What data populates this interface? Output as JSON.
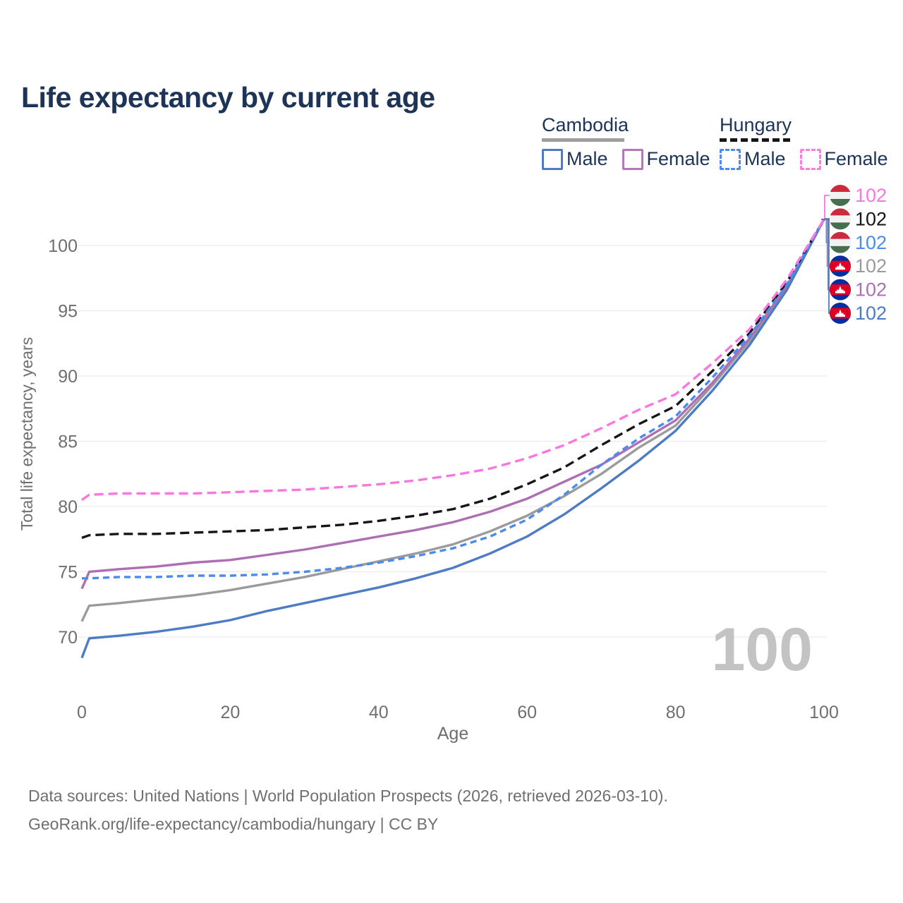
{
  "header": {
    "title": "Life expectancy by current age"
  },
  "legend": {
    "cambodia": {
      "label": "Cambodia",
      "male": "Male",
      "female": "Female",
      "line_style": "solid",
      "swatch_color": "#9e9e9e"
    },
    "hungary": {
      "label": "Hungary",
      "male": "Male",
      "female": "Female",
      "line_style": "dashed",
      "swatch_color": "#161616"
    }
  },
  "footer": {
    "line1": "Data sources: United Nations | World Population Prospects (2026, retrieved 2026-03-10).",
    "line2": "GeoRank.org/life-expectancy/cambodia/hungary | CC BY"
  },
  "colors": {
    "title_text": "#1d3456",
    "tick_text": "#6f6f6f",
    "gridline": "#ececec",
    "watermark": "#c3c3c3",
    "hungary_flag": {
      "red": "#cd2a3e",
      "white": "#f2f2f2",
      "green": "#456f4e"
    },
    "cambodia_flag": {
      "blue": "#032ea1",
      "red": "#df0024",
      "temple": "#ffffff"
    }
  },
  "chart_data": {
    "type": "line",
    "title": "Life expectancy by current age",
    "xlabel": "Age",
    "ylabel": "Total life expectancy, years",
    "x_ticks": [
      0,
      20,
      40,
      60,
      80,
      100
    ],
    "y_ticks": [
      70,
      75,
      80,
      85,
      90,
      95,
      100
    ],
    "xlim": [
      0,
      100
    ],
    "ylim": [
      67,
      103
    ],
    "grid": "horizontal-only",
    "legend_position": "top-right",
    "age_counter_watermark": "100",
    "ages": [
      0,
      1,
      5,
      10,
      15,
      20,
      25,
      30,
      35,
      40,
      45,
      50,
      55,
      60,
      65,
      70,
      75,
      80,
      85,
      90,
      95,
      100
    ],
    "series": [
      {
        "id": "cambodia_total",
        "name": "Cambodia",
        "country": "Cambodia",
        "sex": "Total",
        "style": "solid",
        "color": "#9b9b9b",
        "dash": null,
        "values": [
          71.2,
          72.4,
          72.6,
          72.9,
          73.2,
          73.6,
          74.1,
          74.6,
          75.2,
          75.8,
          76.4,
          77.1,
          78.1,
          79.3,
          80.8,
          82.5,
          84.5,
          86.2,
          89.3,
          92.7,
          96.8,
          102
        ]
      },
      {
        "id": "cambodia_female",
        "name": "Cambodia Female",
        "country": "Cambodia",
        "sex": "Female",
        "style": "solid",
        "color": "#ad6eb4",
        "dash": null,
        "values": [
          73.7,
          75.0,
          75.2,
          75.4,
          75.7,
          75.9,
          76.3,
          76.7,
          77.2,
          77.7,
          78.2,
          78.8,
          79.6,
          80.6,
          81.9,
          83.2,
          84.9,
          86.6,
          89.5,
          92.9,
          96.9,
          102
        ]
      },
      {
        "id": "cambodia_male",
        "name": "Cambodia Male",
        "country": "Cambodia",
        "sex": "Male",
        "style": "solid",
        "color": "#4d7bc4",
        "dash": null,
        "values": [
          68.4,
          69.9,
          70.1,
          70.4,
          70.8,
          71.3,
          72.0,
          72.6,
          73.2,
          73.8,
          74.5,
          75.3,
          76.4,
          77.7,
          79.4,
          81.4,
          83.5,
          85.8,
          88.9,
          92.4,
          96.6,
          102
        ]
      },
      {
        "id": "hungary_total",
        "name": "Hungary",
        "country": "Hungary",
        "sex": "Total",
        "style": "dashed",
        "color": "#161616",
        "dash": "13 7",
        "values": [
          77.6,
          77.8,
          77.9,
          77.9,
          78.0,
          78.1,
          78.2,
          78.4,
          78.6,
          78.9,
          79.3,
          79.8,
          80.6,
          81.7,
          83.0,
          84.7,
          86.3,
          87.7,
          90.4,
          93.3,
          97.2,
          102
        ]
      },
      {
        "id": "hungary_male",
        "name": "Hungary Male",
        "country": "Hungary",
        "sex": "Male",
        "style": "dashed",
        "color": "#4a8bf0",
        "dash": "9 6",
        "values": [
          74.5,
          74.5,
          74.6,
          74.6,
          74.7,
          74.7,
          74.8,
          75.0,
          75.3,
          75.7,
          76.2,
          76.8,
          77.7,
          79.0,
          80.9,
          83.2,
          85.2,
          86.9,
          89.9,
          93.1,
          97.0,
          102
        ]
      },
      {
        "id": "hungary_female",
        "name": "Hungary Female",
        "country": "Hungary",
        "sex": "Female",
        "style": "dashed",
        "color": "#fb77e0",
        "dash": "13 7",
        "values": [
          80.5,
          80.9,
          81.0,
          81.0,
          81.0,
          81.1,
          81.2,
          81.3,
          81.5,
          81.7,
          82.0,
          82.4,
          82.9,
          83.7,
          84.7,
          86.0,
          87.4,
          88.6,
          91.0,
          93.6,
          97.4,
          102
        ]
      }
    ],
    "end_labels": [
      {
        "series": "hungary_female",
        "flag": "hungary",
        "value": "102"
      },
      {
        "series": "hungary_total",
        "flag": "hungary",
        "value": "102"
      },
      {
        "series": "hungary_male",
        "flag": "hungary",
        "value": "102"
      },
      {
        "series": "cambodia_total",
        "flag": "cambodia",
        "value": "102"
      },
      {
        "series": "cambodia_female",
        "flag": "cambodia",
        "value": "102"
      },
      {
        "series": "cambodia_male",
        "flag": "cambodia",
        "value": "102"
      }
    ]
  }
}
